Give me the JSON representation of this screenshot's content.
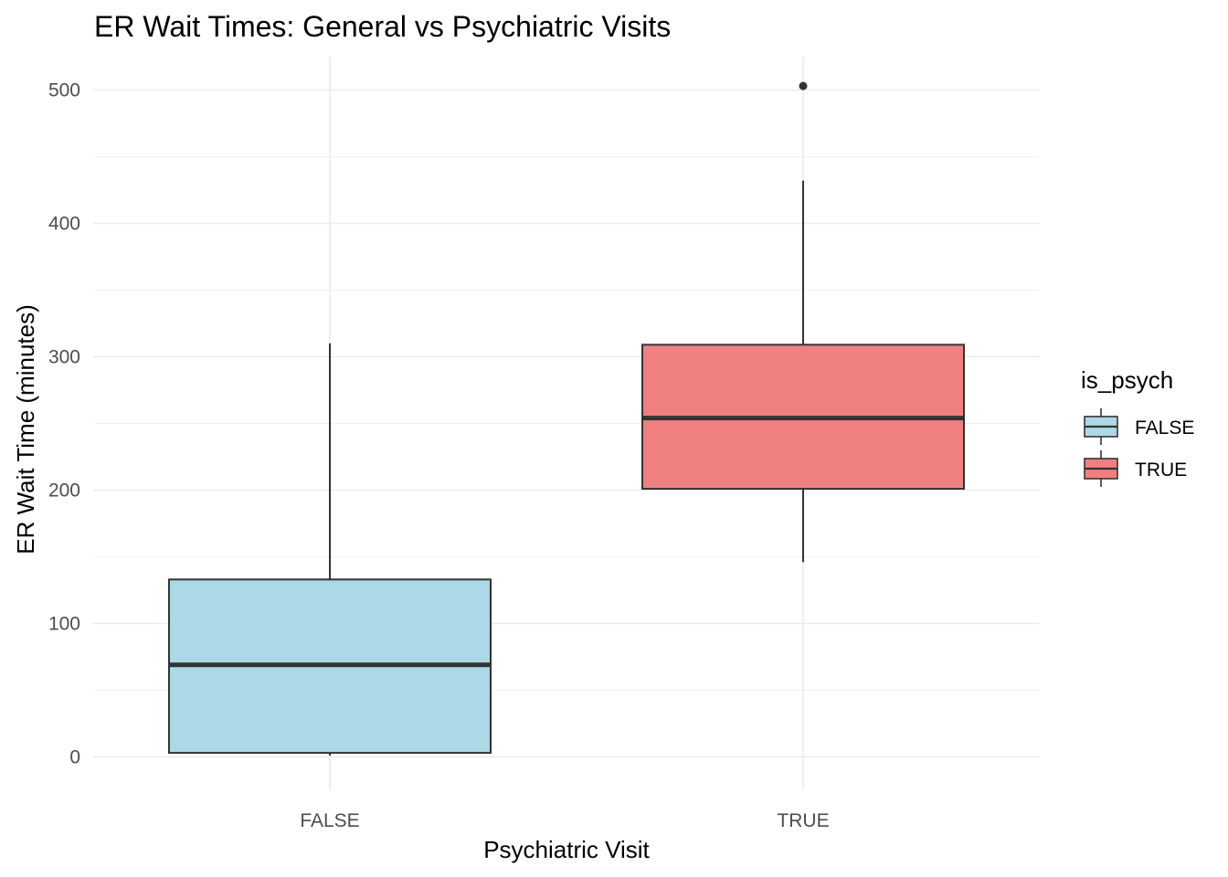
{
  "chart_data": {
    "type": "boxplot",
    "title": "ER Wait Times: General vs Psychiatric Visits",
    "xlabel": "Psychiatric Visit",
    "ylabel": "ER Wait Time (minutes)",
    "ylim": [
      -25,
      525
    ],
    "yticks": [
      0,
      100,
      200,
      300,
      400,
      500
    ],
    "categories": [
      "FALSE",
      "TRUE"
    ],
    "boxes": [
      {
        "category": "FALSE",
        "whisker_low": 1,
        "q1": 3,
        "median": 69,
        "q3": 133,
        "whisker_high": 310,
        "outliers": [],
        "fill": "#add8e6"
      },
      {
        "category": "TRUE",
        "whisker_low": 146,
        "q1": 201,
        "median": 254,
        "q3": 309,
        "whisker_high": 432,
        "outliers": [
          503
        ],
        "fill": "#f08080"
      }
    ],
    "grid": true,
    "legend": {
      "title": "is_psych",
      "position": "right",
      "items": [
        {
          "label": "FALSE",
          "fill": "#add8e6"
        },
        {
          "label": "TRUE",
          "fill": "#f08080"
        }
      ]
    },
    "colors": {
      "line": "#333333",
      "grid": "#ebebeb"
    }
  }
}
